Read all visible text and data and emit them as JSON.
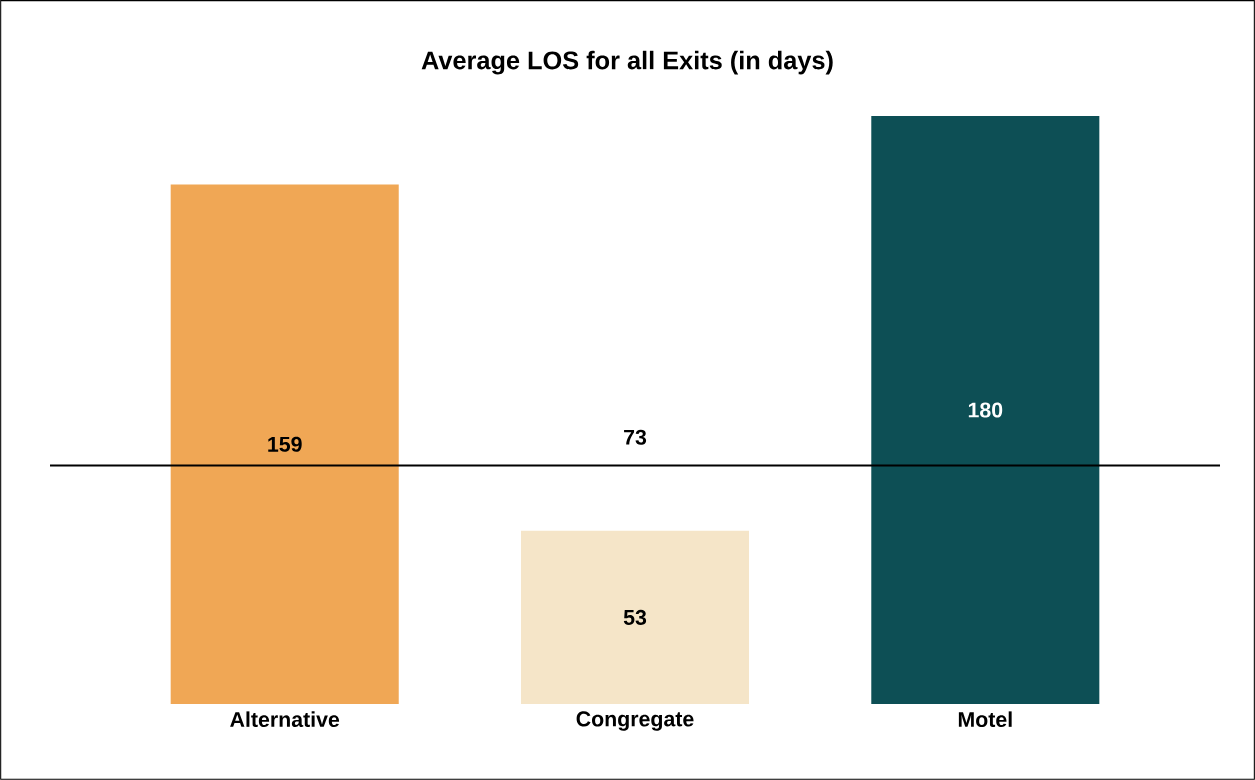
{
  "chart_data": {
    "type": "bar",
    "title": "Average LOS for all Exits (in days)",
    "categories": [
      "Alternative",
      "Congregate",
      "Motel"
    ],
    "values": [
      159,
      53,
      180
    ],
    "colors": [
      "#f0a755",
      "#f5e5c8",
      "#0d4f55"
    ],
    "ylim": [
      0,
      180
    ],
    "tick_labels": "x",
    "data_labels": true,
    "ref_lines": [
      {
        "axis": "y",
        "value": 73,
        "label": "73",
        "color": "#000000"
      }
    ]
  }
}
